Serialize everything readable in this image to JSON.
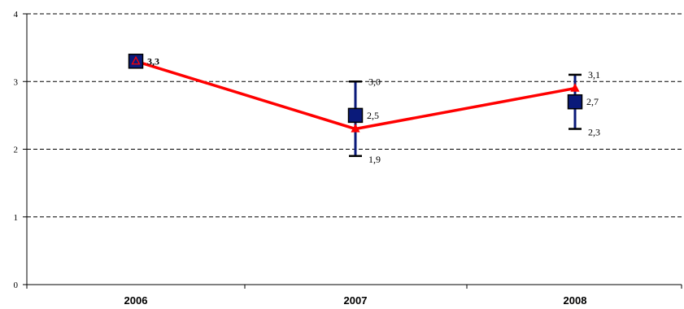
{
  "chart_data": {
    "type": "line",
    "categories": [
      "2006",
      "2007",
      "2008"
    ],
    "ylim": [
      0,
      4
    ],
    "y_ticks": [
      "0",
      "1",
      "2",
      "3",
      "4"
    ],
    "grid": true,
    "series": [
      {
        "kind": "line",
        "color": "#ff0000",
        "marker": "triangle",
        "values": [
          3.3,
          2.3,
          2.9
        ]
      },
      {
        "kind": "square-marker-with-range",
        "color": "#0a1a7a",
        "values": [
          3.3,
          2.5,
          2.7
        ],
        "labels": [
          "3,3",
          "2,5",
          "2,7"
        ],
        "high": [
          null,
          3.0,
          3.1
        ],
        "high_labels": [
          "",
          "3,0",
          "3,1"
        ],
        "low": [
          null,
          1.9,
          2.3
        ],
        "low_labels": [
          "",
          "1,9",
          "2,3"
        ]
      }
    ]
  }
}
